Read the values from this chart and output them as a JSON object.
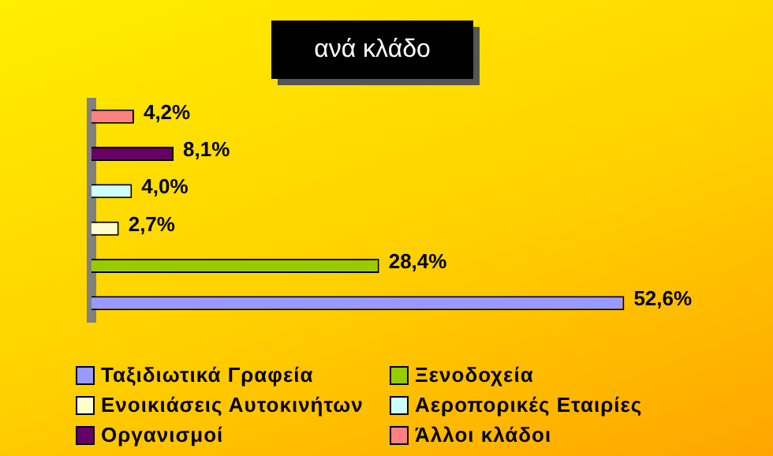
{
  "chart_data": {
    "type": "bar",
    "title": "ανά κλάδο",
    "orientation": "horizontal",
    "stacked": true,
    "categories": [
      null,
      null,
      null,
      null,
      null,
      null
    ],
    "legend": "bottom",
    "series": [
      {
        "name": "Ταξιδιωτικά Γραφεία",
        "color": "#9999ff",
        "values": [
          null,
          null,
          null,
          null,
          null,
          52.6
        ],
        "value_labels": [
          null,
          null,
          null,
          null,
          null,
          "52,6%"
        ]
      },
      {
        "name": "Ξενοδοχεία",
        "color": "#99cc00",
        "values": [
          null,
          null,
          null,
          null,
          28.4,
          null
        ],
        "value_labels": [
          null,
          null,
          null,
          null,
          "28,4%",
          null
        ]
      },
      {
        "name": "Ενοικιάσεις Αυτοκινήτων",
        "color": "#ffffcc",
        "values": [
          null,
          null,
          null,
          2.7,
          null,
          null
        ],
        "value_labels": [
          null,
          null,
          null,
          "2,7%",
          null,
          null
        ]
      },
      {
        "name": "Αεροπορικές Εταιρίες",
        "color": "#ccffff",
        "values": [
          null,
          null,
          4.0,
          null,
          null,
          null
        ],
        "value_labels": [
          null,
          null,
          "4,0%",
          null,
          null,
          null
        ]
      },
      {
        "name": "Οργανισμοί",
        "color": "#660066",
        "values": [
          null,
          8.1,
          null,
          null,
          null,
          null
        ],
        "value_labels": [
          null,
          "8,1%",
          null,
          null,
          null,
          null
        ]
      },
      {
        "name": "Άλλοι κλάδοι",
        "color": "#ff8080",
        "values": [
          4.2,
          null,
          null,
          null,
          null,
          null
        ],
        "value_labels": [
          "4,2%",
          null,
          null,
          null,
          null,
          null
        ]
      }
    ]
  }
}
